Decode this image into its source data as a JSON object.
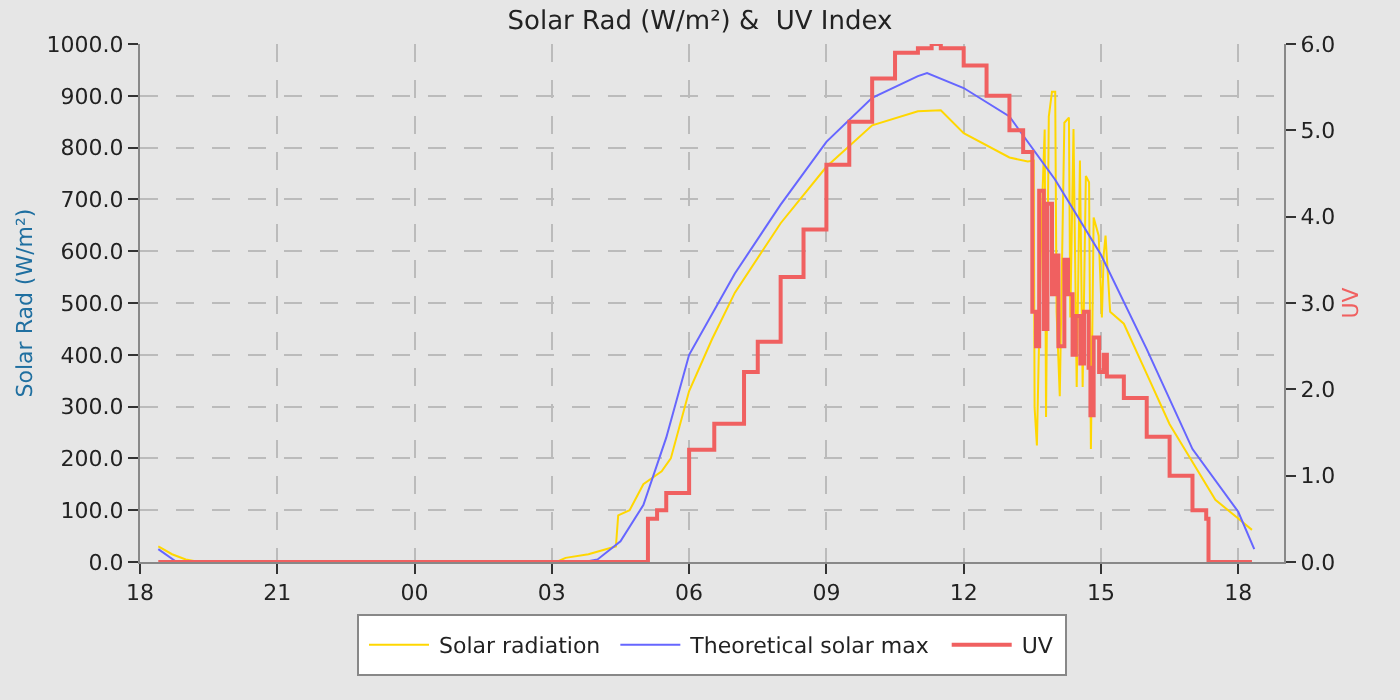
{
  "chart_data": {
    "type": "line",
    "title": "Solar Rad (W/m²) &  UV Index",
    "ylabel": "Solar Rad (W/m²)",
    "y2label": "UV",
    "xlim": [
      18,
      43
    ],
    "xticks": [
      {
        "value": 18,
        "label": "18"
      },
      {
        "value": 21,
        "label": "21"
      },
      {
        "value": 24,
        "label": "00"
      },
      {
        "value": 27,
        "label": "03"
      },
      {
        "value": 30,
        "label": "06"
      },
      {
        "value": 33,
        "label": "09"
      },
      {
        "value": 36,
        "label": "12"
      },
      {
        "value": 39,
        "label": "15"
      },
      {
        "value": 42,
        "label": "18"
      }
    ],
    "ylim": [
      0,
      1000
    ],
    "yticks": [
      {
        "value": 0,
        "label": "0.0"
      },
      {
        "value": 100,
        "label": "100.0"
      },
      {
        "value": 200,
        "label": "200.0"
      },
      {
        "value": 300,
        "label": "300.0"
      },
      {
        "value": 400,
        "label": "400.0"
      },
      {
        "value": 500,
        "label": "500.0"
      },
      {
        "value": 600,
        "label": "600.0"
      },
      {
        "value": 700,
        "label": "700.0"
      },
      {
        "value": 800,
        "label": "800.0"
      },
      {
        "value": 900,
        "label": "900.0"
      },
      {
        "value": 1000,
        "label": "1000.0"
      }
    ],
    "y2lim": [
      0,
      6
    ],
    "y2ticks": [
      {
        "value": 0,
        "label": "0.0"
      },
      {
        "value": 1,
        "label": "1.0"
      },
      {
        "value": 2,
        "label": "2.0"
      },
      {
        "value": 3,
        "label": "3.0"
      },
      {
        "value": 4,
        "label": "4.0"
      },
      {
        "value": 5,
        "label": "5.0"
      },
      {
        "value": 6,
        "label": "6.0"
      }
    ],
    "grid": true,
    "legend": "bottom",
    "line_style": "solid",
    "marker": "none",
    "series": [
      {
        "name": "Solar radiation",
        "color": "#ffd700",
        "x": [
          18.4,
          18.7,
          19.0,
          19.3,
          27.1,
          27.3,
          27.8,
          28.2,
          28.4,
          28.45,
          28.7,
          29.0,
          29.4,
          29.6,
          30.0,
          30.5,
          31.0,
          32.0,
          33.0,
          34.0,
          35.0,
          35.5,
          36.0,
          37.0,
          37.4,
          37.53,
          37.55,
          37.6,
          37.7,
          37.77,
          37.8,
          37.86,
          37.93,
          38.0,
          38.03,
          38.1,
          38.2,
          38.3,
          38.33,
          38.4,
          38.47,
          38.54,
          38.6,
          38.67,
          38.74,
          38.78,
          38.84,
          38.95,
          39.02,
          39.06,
          39.1,
          39.2,
          39.5,
          40.0,
          40.5,
          41.0,
          41.5,
          42.0,
          42.3
        ],
        "values": [
          30,
          15,
          5,
          0,
          0,
          8,
          15,
          25,
          30,
          90,
          100,
          150,
          175,
          200,
          330,
          430,
          520,
          654,
          763,
          843,
          870,
          872,
          828,
          781,
          773,
          775,
          298,
          225,
          654,
          835,
          280,
          860,
          908,
          908,
          483,
          320,
          848,
          858,
          472,
          836,
          338,
          775,
          338,
          745,
          733,
          218,
          665,
          630,
          472,
          593,
          630,
          483,
          460,
          363,
          266,
          193,
          120,
          84,
          62
        ]
      },
      {
        "name": "Theoretical solar max",
        "color": "#6666ff",
        "x": [
          18.4,
          18.8,
          27.7,
          28.0,
          28.5,
          29.0,
          29.5,
          30.0,
          31.0,
          32.0,
          33.0,
          34.0,
          35.0,
          35.2,
          36.0,
          37.0,
          38.0,
          39.0,
          40.0,
          41.0,
          42.0,
          42.35
        ],
        "values": [
          25,
          0,
          0,
          5,
          40,
          110,
          240,
          400,
          557,
          690,
          811,
          896,
          938,
          944,
          915,
          860,
          738,
          593,
          411,
          218,
          97,
          25
        ]
      },
      {
        "name": "UV",
        "color": "#f06060",
        "type": "step",
        "axis": "y2",
        "x": [
          18.4,
          29.09,
          29.1,
          29.3,
          29.5,
          30.0,
          30.55,
          31.2,
          31.5,
          32.0,
          32.5,
          33.0,
          33.5,
          34.0,
          34.5,
          35.0,
          35.3,
          35.5,
          36.0,
          36.5,
          37.0,
          37.3,
          37.5,
          37.58,
          37.65,
          37.75,
          37.83,
          37.93,
          38.0,
          38.07,
          38.2,
          38.28,
          38.38,
          38.45,
          38.55,
          38.63,
          38.73,
          38.77,
          38.84,
          38.96,
          39.06,
          39.13,
          39.5,
          40.0,
          40.5,
          41.0,
          41.3,
          41.35,
          42.3
        ],
        "values": [
          0,
          0,
          0.5,
          0.6,
          0.8,
          1.3,
          1.6,
          2.2,
          2.55,
          3.3,
          3.85,
          4.6,
          5.1,
          5.6,
          5.9,
          5.95,
          6.0,
          5.95,
          5.75,
          5.4,
          5.0,
          4.75,
          2.9,
          2.5,
          4.3,
          2.7,
          4.15,
          3.1,
          3.55,
          2.5,
          3.5,
          3.1,
          2.4,
          2.85,
          2.3,
          2.9,
          2.25,
          1.7,
          2.6,
          2.2,
          2.4,
          2.15,
          1.9,
          1.45,
          1.0,
          0.6,
          0.5,
          0,
          0
        ]
      }
    ]
  }
}
